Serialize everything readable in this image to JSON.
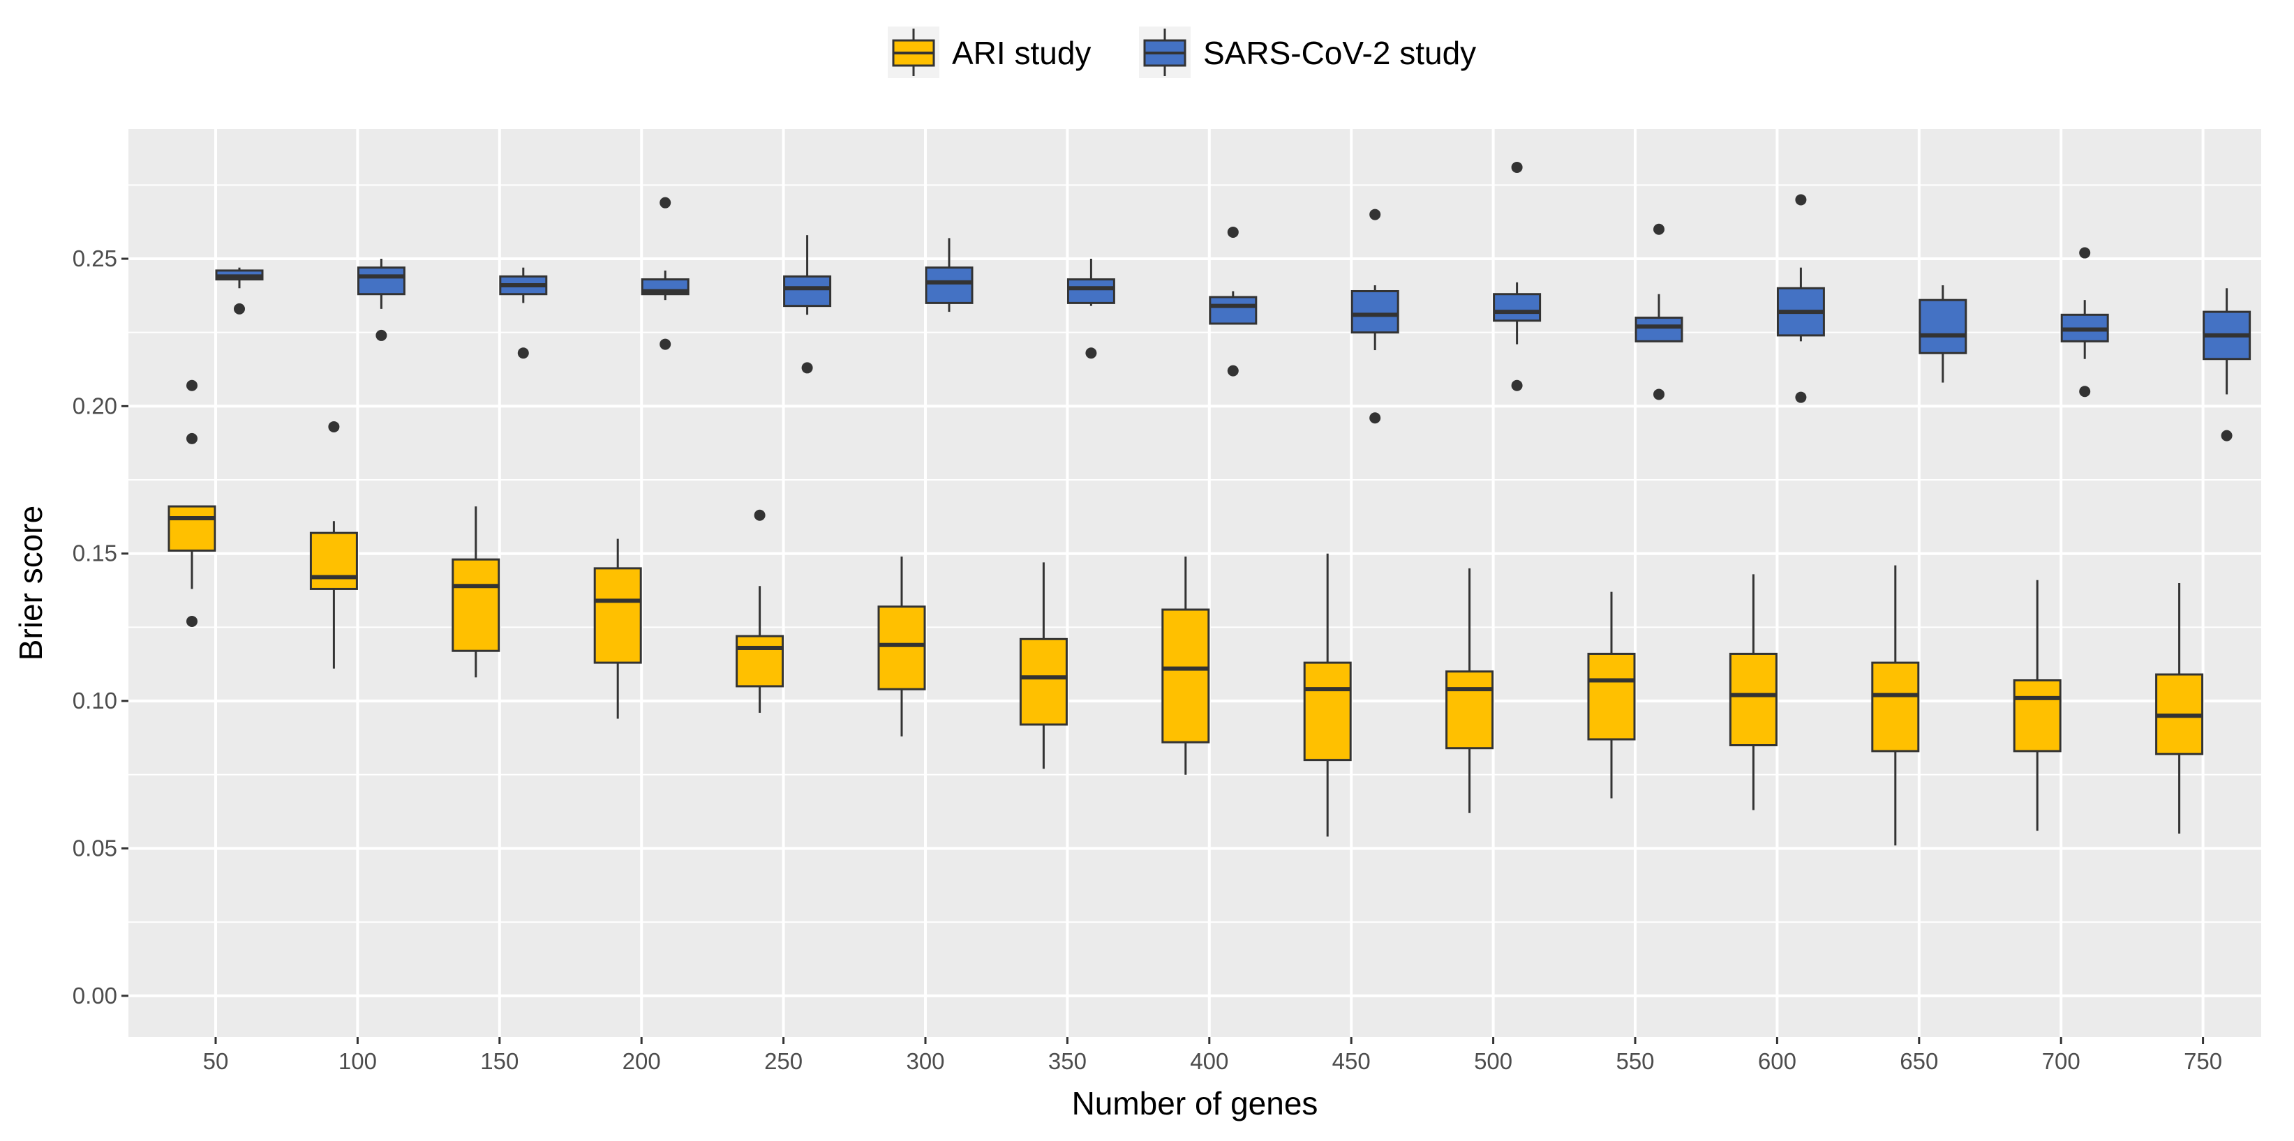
{
  "colors": {
    "ari": "#FFC000",
    "sars": "#4472C4",
    "panel_bg": "#EBEBEB",
    "grid": "#FFFFFF",
    "stroke": "#333333"
  },
  "chart_data": {
    "type": "boxplot",
    "xlabel": "Number of genes",
    "ylabel": "Brier score",
    "ylim": [
      -0.014,
      0.294
    ],
    "yticks": [
      "0.00",
      "0.05",
      "0.10",
      "0.15",
      "0.20",
      "0.25"
    ],
    "ytick_values": [
      0,
      0.05,
      0.1,
      0.15,
      0.2,
      0.25
    ],
    "categories": [
      "50",
      "100",
      "150",
      "200",
      "250",
      "300",
      "350",
      "400",
      "450",
      "500",
      "550",
      "600",
      "650",
      "700",
      "750"
    ],
    "legend": {
      "position": "top",
      "labels": [
        "ARI study",
        "SARS-CoV-2 study"
      ]
    },
    "series": [
      {
        "name": "ARI study",
        "color": "#FFC000",
        "boxes": [
          {
            "lw": 0.138,
            "q1": 0.151,
            "median": 0.162,
            "q3": 0.166,
            "uw": 0.166,
            "outliers": [
              0.127,
              0.189,
              0.207
            ]
          },
          {
            "lw": 0.111,
            "q1": 0.138,
            "median": 0.142,
            "q3": 0.157,
            "uw": 0.161,
            "outliers": [
              0.193
            ]
          },
          {
            "lw": 0.108,
            "q1": 0.117,
            "median": 0.139,
            "q3": 0.148,
            "uw": 0.166,
            "outliers": []
          },
          {
            "lw": 0.094,
            "q1": 0.113,
            "median": 0.134,
            "q3": 0.145,
            "uw": 0.155,
            "outliers": []
          },
          {
            "lw": 0.096,
            "q1": 0.105,
            "median": 0.118,
            "q3": 0.122,
            "uw": 0.139,
            "outliers": [
              0.163
            ]
          },
          {
            "lw": 0.088,
            "q1": 0.104,
            "median": 0.119,
            "q3": 0.132,
            "uw": 0.149,
            "outliers": []
          },
          {
            "lw": 0.077,
            "q1": 0.092,
            "median": 0.108,
            "q3": 0.121,
            "uw": 0.147,
            "outliers": []
          },
          {
            "lw": 0.075,
            "q1": 0.086,
            "median": 0.111,
            "q3": 0.131,
            "uw": 0.149,
            "outliers": []
          },
          {
            "lw": 0.054,
            "q1": 0.08,
            "median": 0.104,
            "q3": 0.113,
            "uw": 0.15,
            "outliers": []
          },
          {
            "lw": 0.062,
            "q1": 0.084,
            "median": 0.104,
            "q3": 0.11,
            "uw": 0.145,
            "outliers": []
          },
          {
            "lw": 0.067,
            "q1": 0.087,
            "median": 0.107,
            "q3": 0.116,
            "uw": 0.137,
            "outliers": []
          },
          {
            "lw": 0.063,
            "q1": 0.085,
            "median": 0.102,
            "q3": 0.116,
            "uw": 0.143,
            "outliers": []
          },
          {
            "lw": 0.051,
            "q1": 0.083,
            "median": 0.102,
            "q3": 0.113,
            "uw": 0.146,
            "outliers": []
          },
          {
            "lw": 0.056,
            "q1": 0.083,
            "median": 0.101,
            "q3": 0.107,
            "uw": 0.141,
            "outliers": []
          },
          {
            "lw": 0.055,
            "q1": 0.082,
            "median": 0.095,
            "q3": 0.109,
            "uw": 0.14,
            "outliers": []
          }
        ]
      },
      {
        "name": "SARS-CoV-2 study",
        "color": "#4472C4",
        "boxes": [
          {
            "lw": 0.24,
            "q1": 0.243,
            "median": 0.244,
            "q3": 0.246,
            "uw": 0.247,
            "outliers": [
              0.233
            ]
          },
          {
            "lw": 0.233,
            "q1": 0.238,
            "median": 0.244,
            "q3": 0.247,
            "uw": 0.25,
            "outliers": [
              0.224
            ]
          },
          {
            "lw": 0.235,
            "q1": 0.238,
            "median": 0.241,
            "q3": 0.244,
            "uw": 0.247,
            "outliers": [
              0.218
            ]
          },
          {
            "lw": 0.236,
            "q1": 0.238,
            "median": 0.239,
            "q3": 0.243,
            "uw": 0.246,
            "outliers": [
              0.221,
              0.269
            ]
          },
          {
            "lw": 0.231,
            "q1": 0.234,
            "median": 0.24,
            "q3": 0.244,
            "uw": 0.258,
            "outliers": [
              0.213
            ]
          },
          {
            "lw": 0.232,
            "q1": 0.235,
            "median": 0.242,
            "q3": 0.247,
            "uw": 0.257,
            "outliers": []
          },
          {
            "lw": 0.234,
            "q1": 0.235,
            "median": 0.24,
            "q3": 0.243,
            "uw": 0.25,
            "outliers": [
              0.218
            ]
          },
          {
            "lw": 0.228,
            "q1": 0.228,
            "median": 0.234,
            "q3": 0.237,
            "uw": 0.239,
            "outliers": [
              0.212,
              0.259
            ]
          },
          {
            "lw": 0.219,
            "q1": 0.225,
            "median": 0.231,
            "q3": 0.239,
            "uw": 0.241,
            "outliers": [
              0.196,
              0.265
            ]
          },
          {
            "lw": 0.221,
            "q1": 0.229,
            "median": 0.232,
            "q3": 0.238,
            "uw": 0.242,
            "outliers": [
              0.207,
              0.281
            ]
          },
          {
            "lw": 0.222,
            "q1": 0.222,
            "median": 0.227,
            "q3": 0.23,
            "uw": 0.238,
            "outliers": [
              0.204,
              0.26
            ]
          },
          {
            "lw": 0.222,
            "q1": 0.224,
            "median": 0.232,
            "q3": 0.24,
            "uw": 0.247,
            "outliers": [
              0.203,
              0.27
            ]
          },
          {
            "lw": 0.208,
            "q1": 0.218,
            "median": 0.224,
            "q3": 0.236,
            "uw": 0.241,
            "outliers": []
          },
          {
            "lw": 0.216,
            "q1": 0.222,
            "median": 0.226,
            "q3": 0.231,
            "uw": 0.236,
            "outliers": [
              0.205,
              0.252
            ]
          },
          {
            "lw": 0.204,
            "q1": 0.216,
            "median": 0.224,
            "q3": 0.232,
            "uw": 0.24,
            "outliers": [
              0.19
            ]
          }
        ]
      }
    ]
  }
}
